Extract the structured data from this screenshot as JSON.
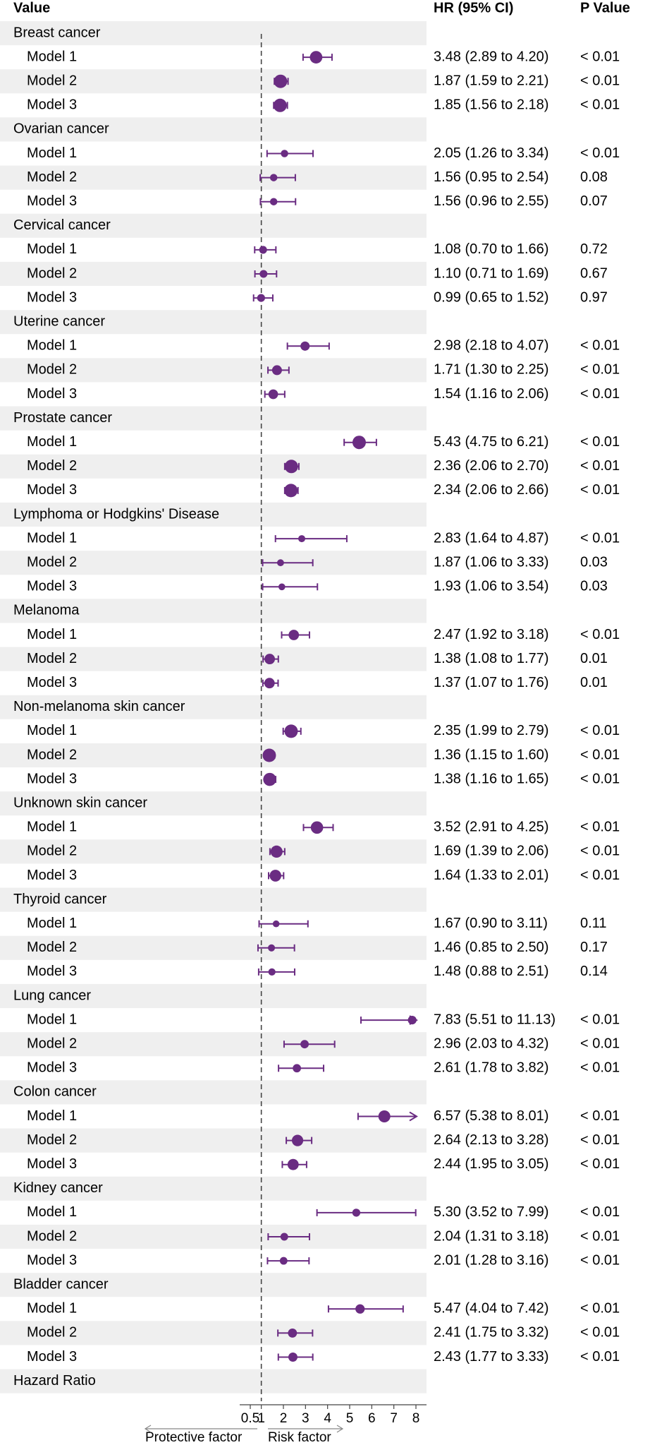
{
  "chart_data": {
    "type": "forest",
    "columns": {
      "value": "Value",
      "hr": "HR (95% CI)",
      "p": "P Value"
    },
    "reference_line": 1,
    "x_ticks": [
      "0.5",
      "1",
      "2",
      "3",
      "4",
      "5",
      "6",
      "7",
      "8"
    ],
    "xlim": [
      0.5,
      8
    ],
    "footer_label": "Hazard Ratio",
    "direction_labels": {
      "left": "Protective factor",
      "right": "Risk factor"
    },
    "marker_color": "#6a2c82",
    "band_color": "#efefef",
    "groups": [
      {
        "name": "Breast cancer",
        "rows": [
          {
            "label": "Model 1",
            "hr": 3.48,
            "lo": 2.89,
            "hi": 4.2,
            "ci_text": "3.48 (2.89 to 4.20)",
            "p": "< 0.01"
          },
          {
            "label": "Model 2",
            "hr": 1.87,
            "lo": 1.59,
            "hi": 2.21,
            "ci_text": "1.87 (1.59 to 2.21)",
            "p": "< 0.01"
          },
          {
            "label": "Model 3",
            "hr": 1.85,
            "lo": 1.56,
            "hi": 2.18,
            "ci_text": "1.85 (1.56 to 2.18)",
            "p": "< 0.01"
          }
        ]
      },
      {
        "name": "Ovarian cancer",
        "rows": [
          {
            "label": "Model 1",
            "hr": 2.05,
            "lo": 1.26,
            "hi": 3.34,
            "ci_text": "2.05 (1.26 to 3.34)",
            "p": "< 0.01"
          },
          {
            "label": "Model 2",
            "hr": 1.56,
            "lo": 0.95,
            "hi": 2.54,
            "ci_text": "1.56 (0.95 to 2.54)",
            "p": "0.08"
          },
          {
            "label": "Model 3",
            "hr": 1.56,
            "lo": 0.96,
            "hi": 2.55,
            "ci_text": "1.56 (0.96 to 2.55)",
            "p": "0.07"
          }
        ]
      },
      {
        "name": "Cervical cancer",
        "rows": [
          {
            "label": "Model 1",
            "hr": 1.08,
            "lo": 0.7,
            "hi": 1.66,
            "ci_text": "1.08 (0.70 to 1.66)",
            "p": "0.72"
          },
          {
            "label": "Model 2",
            "hr": 1.1,
            "lo": 0.71,
            "hi": 1.69,
            "ci_text": "1.10 (0.71 to 1.69)",
            "p": "0.67"
          },
          {
            "label": "Model 3",
            "hr": 0.99,
            "lo": 0.65,
            "hi": 1.52,
            "ci_text": "0.99 (0.65 to 1.52)",
            "p": "0.97"
          }
        ]
      },
      {
        "name": "Uterine cancer",
        "rows": [
          {
            "label": "Model 1",
            "hr": 2.98,
            "lo": 2.18,
            "hi": 4.07,
            "ci_text": "2.98 (2.18 to 4.07)",
            "p": "< 0.01"
          },
          {
            "label": "Model 2",
            "hr": 1.71,
            "lo": 1.3,
            "hi": 2.25,
            "ci_text": "1.71 (1.30 to 2.25)",
            "p": "< 0.01"
          },
          {
            "label": "Model 3",
            "hr": 1.54,
            "lo": 1.16,
            "hi": 2.06,
            "ci_text": "1.54 (1.16 to 2.06)",
            "p": "< 0.01"
          }
        ]
      },
      {
        "name": "Prostate cancer",
        "rows": [
          {
            "label": "Model 1",
            "hr": 5.43,
            "lo": 4.75,
            "hi": 6.21,
            "ci_text": "5.43 (4.75 to 6.21)",
            "p": "< 0.01"
          },
          {
            "label": "Model 2",
            "hr": 2.36,
            "lo": 2.06,
            "hi": 2.7,
            "ci_text": "2.36 (2.06 to 2.70)",
            "p": "< 0.01"
          },
          {
            "label": "Model 3",
            "hr": 2.34,
            "lo": 2.06,
            "hi": 2.66,
            "ci_text": "2.34 (2.06 to 2.66)",
            "p": "< 0.01"
          }
        ]
      },
      {
        "name": "Lymphoma or Hodgkins' Disease",
        "rows": [
          {
            "label": "Model 1",
            "hr": 2.83,
            "lo": 1.64,
            "hi": 4.87,
            "ci_text": "2.83 (1.64 to 4.87)",
            "p": "< 0.01"
          },
          {
            "label": "Model 2",
            "hr": 1.87,
            "lo": 1.06,
            "hi": 3.33,
            "ci_text": "1.87 (1.06 to 3.33)",
            "p": "0.03"
          },
          {
            "label": "Model 3",
            "hr": 1.93,
            "lo": 1.06,
            "hi": 3.54,
            "ci_text": "1.93 (1.06 to 3.54)",
            "p": "0.03"
          }
        ]
      },
      {
        "name": "Melanoma",
        "rows": [
          {
            "label": "Model 1",
            "hr": 2.47,
            "lo": 1.92,
            "hi": 3.18,
            "ci_text": "2.47 (1.92 to 3.18)",
            "p": "< 0.01"
          },
          {
            "label": "Model 2",
            "hr": 1.38,
            "lo": 1.08,
            "hi": 1.77,
            "ci_text": "1.38 (1.08 to 1.77)",
            "p": "0.01"
          },
          {
            "label": "Model 3",
            "hr": 1.37,
            "lo": 1.07,
            "hi": 1.76,
            "ci_text": "1.37 (1.07 to 1.76)",
            "p": "0.01"
          }
        ]
      },
      {
        "name": "Non-melanoma skin cancer",
        "rows": [
          {
            "label": "Model 1",
            "hr": 2.35,
            "lo": 1.99,
            "hi": 2.79,
            "ci_text": "2.35 (1.99 to 2.79)",
            "p": "< 0.01"
          },
          {
            "label": "Model 2",
            "hr": 1.36,
            "lo": 1.15,
            "hi": 1.6,
            "ci_text": "1.36 (1.15 to 1.60)",
            "p": "< 0.01"
          },
          {
            "label": "Model 3",
            "hr": 1.38,
            "lo": 1.16,
            "hi": 1.65,
            "ci_text": "1.38 (1.16 to 1.65)",
            "p": "< 0.01"
          }
        ]
      },
      {
        "name": "Unknown skin cancer",
        "rows": [
          {
            "label": "Model 1",
            "hr": 3.52,
            "lo": 2.91,
            "hi": 4.25,
            "ci_text": "3.52 (2.91 to 4.25)",
            "p": "< 0.01"
          },
          {
            "label": "Model 2",
            "hr": 1.69,
            "lo": 1.39,
            "hi": 2.06,
            "ci_text": "1.69 (1.39 to 2.06)",
            "p": "< 0.01"
          },
          {
            "label": "Model 3",
            "hr": 1.64,
            "lo": 1.33,
            "hi": 2.01,
            "ci_text": "1.64 (1.33 to 2.01)",
            "p": "< 0.01"
          }
        ]
      },
      {
        "name": "Thyroid cancer",
        "rows": [
          {
            "label": "Model 1",
            "hr": 1.67,
            "lo": 0.9,
            "hi": 3.11,
            "ci_text": "1.67 (0.90 to 3.11)",
            "p": "0.11"
          },
          {
            "label": "Model 2",
            "hr": 1.46,
            "lo": 0.85,
            "hi": 2.5,
            "ci_text": "1.46 (0.85 to 2.50)",
            "p": "0.17"
          },
          {
            "label": "Model 3",
            "hr": 1.48,
            "lo": 0.88,
            "hi": 2.51,
            "ci_text": "1.48 (0.88 to 2.51)",
            "p": "0.14"
          }
        ]
      },
      {
        "name": "Lung cancer",
        "rows": [
          {
            "label": "Model 1",
            "hr": 7.83,
            "lo": 5.51,
            "hi": 11.13,
            "ci_text": "7.83 (5.51 to 11.13)",
            "p": "< 0.01"
          },
          {
            "label": "Model 2",
            "hr": 2.96,
            "lo": 2.03,
            "hi": 4.32,
            "ci_text": "2.96 (2.03 to 4.32)",
            "p": "< 0.01"
          },
          {
            "label": "Model 3",
            "hr": 2.61,
            "lo": 1.78,
            "hi": 3.82,
            "ci_text": "2.61 (1.78 to 3.82)",
            "p": "< 0.01"
          }
        ]
      },
      {
        "name": "Colon cancer",
        "rows": [
          {
            "label": "Model 1",
            "hr": 6.57,
            "lo": 5.38,
            "hi": 8.01,
            "ci_text": "6.57 (5.38 to 8.01)",
            "p": "< 0.01"
          },
          {
            "label": "Model 2",
            "hr": 2.64,
            "lo": 2.13,
            "hi": 3.28,
            "ci_text": "2.64 (2.13 to 3.28)",
            "p": "< 0.01"
          },
          {
            "label": "Model 3",
            "hr": 2.44,
            "lo": 1.95,
            "hi": 3.05,
            "ci_text": "2.44 (1.95 to 3.05)",
            "p": "< 0.01"
          }
        ]
      },
      {
        "name": "Kidney cancer",
        "rows": [
          {
            "label": "Model 1",
            "hr": 5.3,
            "lo": 3.52,
            "hi": 7.99,
            "ci_text": "5.30 (3.52 to 7.99)",
            "p": "< 0.01"
          },
          {
            "label": "Model 2",
            "hr": 2.04,
            "lo": 1.31,
            "hi": 3.18,
            "ci_text": "2.04 (1.31 to 3.18)",
            "p": "< 0.01"
          },
          {
            "label": "Model 3",
            "hr": 2.01,
            "lo": 1.28,
            "hi": 3.16,
            "ci_text": "2.01 (1.28 to 3.16)",
            "p": "< 0.01"
          }
        ]
      },
      {
        "name": "Bladder cancer",
        "rows": [
          {
            "label": "Model 1",
            "hr": 5.47,
            "lo": 4.04,
            "hi": 7.42,
            "ci_text": "5.47 (4.04 to 7.42)",
            "p": "< 0.01"
          },
          {
            "label": "Model 2",
            "hr": 2.41,
            "lo": 1.75,
            "hi": 3.32,
            "ci_text": "2.41 (1.75 to 3.32)",
            "p": "< 0.01"
          },
          {
            "label": "Model 3",
            "hr": 2.43,
            "lo": 1.77,
            "hi": 3.33,
            "ci_text": "2.43 (1.77 to 3.33)",
            "p": "< 0.01"
          }
        ]
      }
    ]
  }
}
